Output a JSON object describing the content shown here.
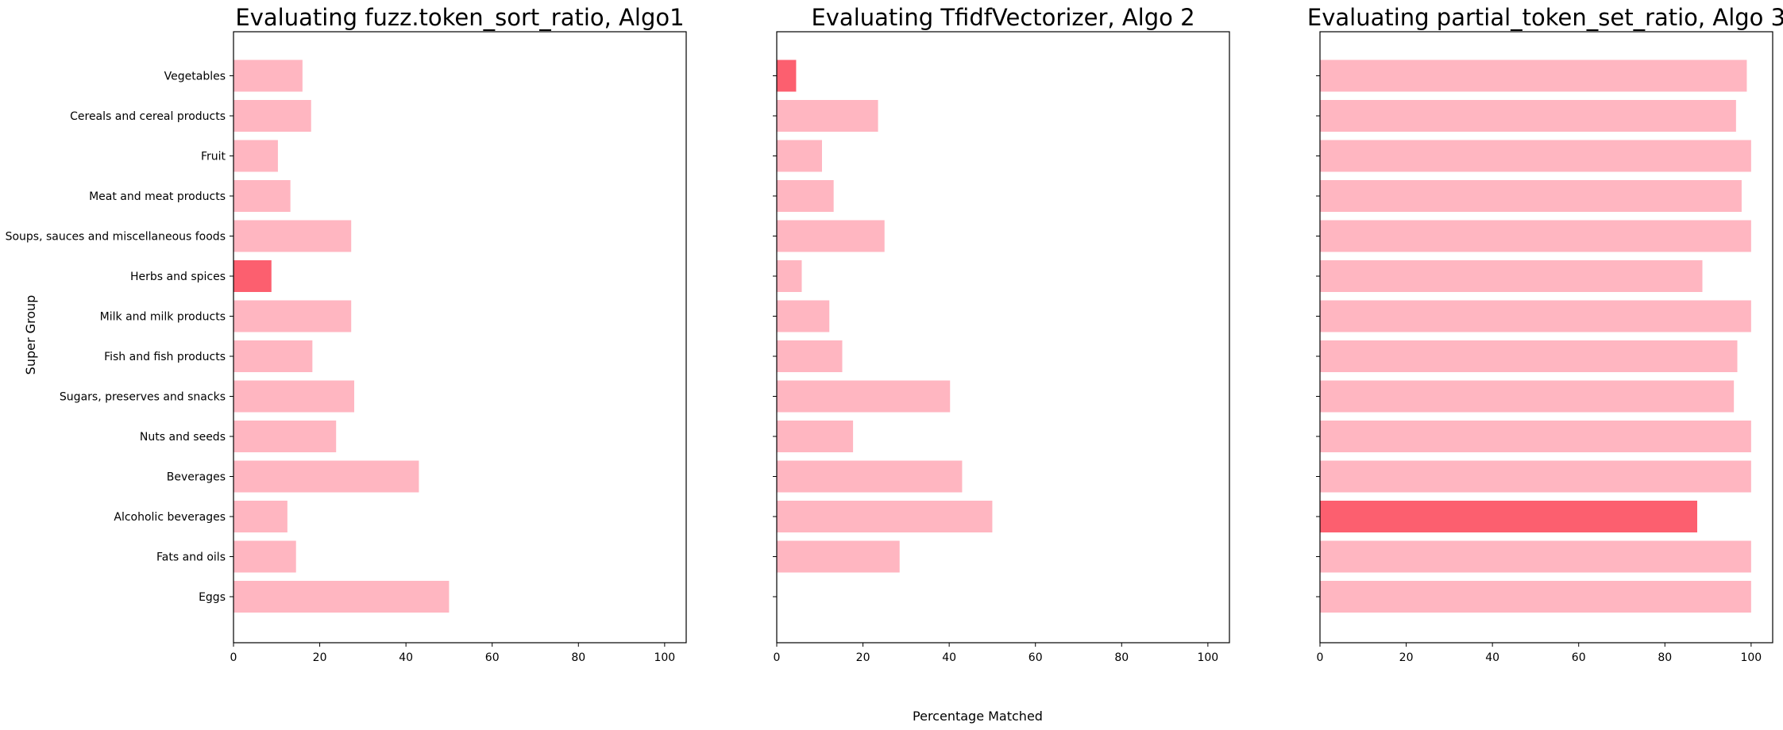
{
  "figure": {
    "xlabel": "Percentage Matched",
    "ylabel": "Super Group"
  },
  "colors": {
    "bar": "#ffb6c1",
    "highlight": "#fc5f6f",
    "axis": "#000000",
    "background": "#ffffff"
  },
  "chart_data": [
    {
      "type": "bar",
      "orientation": "horizontal",
      "title": "Evaluating fuzz.token_sort_ratio, Algo1",
      "categories": [
        "Vegetables",
        "Cereals and cereal products",
        "Fruit",
        "Meat and meat products",
        "Soups, sauces and miscellaneous foods",
        "Herbs and spices",
        "Milk and milk products",
        "Fish and fish products",
        "Sugars, preserves and snacks",
        "Nuts and seeds",
        "Beverages",
        "Alcoholic beverages",
        "Fats and oils",
        "Eggs"
      ],
      "values": [
        16,
        18,
        10.3,
        13.2,
        27.3,
        8.8,
        27.3,
        18.3,
        28,
        23.8,
        43,
        12.5,
        14.5,
        50
      ],
      "highlight": "Herbs and spices",
      "xlim": [
        0,
        105
      ],
      "xticks": [
        0,
        20,
        40,
        60,
        80,
        100
      ],
      "show_category_labels": true
    },
    {
      "type": "bar",
      "orientation": "horizontal",
      "title": "Evaluating TfidfVectorizer, Algo 2",
      "categories": [
        "Vegetables",
        "Cereals and cereal products",
        "Fruit",
        "Meat and meat products",
        "Soups, sauces and miscellaneous foods",
        "Herbs and spices",
        "Milk and milk products",
        "Fish and fish products",
        "Sugars, preserves and snacks",
        "Nuts and seeds",
        "Beverages",
        "Alcoholic beverages",
        "Fats and oils",
        "Eggs"
      ],
      "values": [
        4.5,
        23.5,
        10.5,
        13.2,
        25,
        5.8,
        12.2,
        15.2,
        40.2,
        17.7,
        43,
        50,
        28.5,
        0
      ],
      "highlight": "Vegetables",
      "xlim": [
        0,
        105
      ],
      "xticks": [
        0,
        20,
        40,
        60,
        80,
        100
      ],
      "show_category_labels": false
    },
    {
      "type": "bar",
      "orientation": "horizontal",
      "title": "Evaluating partial_token_set_ratio, Algo 3",
      "categories": [
        "Vegetables",
        "Cereals and cereal products",
        "Fruit",
        "Meat and meat products",
        "Soups, sauces and miscellaneous foods",
        "Herbs and spices",
        "Milk and milk products",
        "Fish and fish products",
        "Sugars, preserves and snacks",
        "Nuts and seeds",
        "Beverages",
        "Alcoholic beverages",
        "Fats and oils",
        "Eggs"
      ],
      "values": [
        99,
        96.5,
        100,
        97.8,
        100,
        88.7,
        100,
        96.8,
        96,
        100,
        100,
        87.5,
        100,
        100
      ],
      "highlight": "Alcoholic beverages",
      "xlim": [
        0,
        105
      ],
      "xticks": [
        0,
        20,
        40,
        60,
        80,
        100
      ],
      "show_category_labels": false
    }
  ]
}
